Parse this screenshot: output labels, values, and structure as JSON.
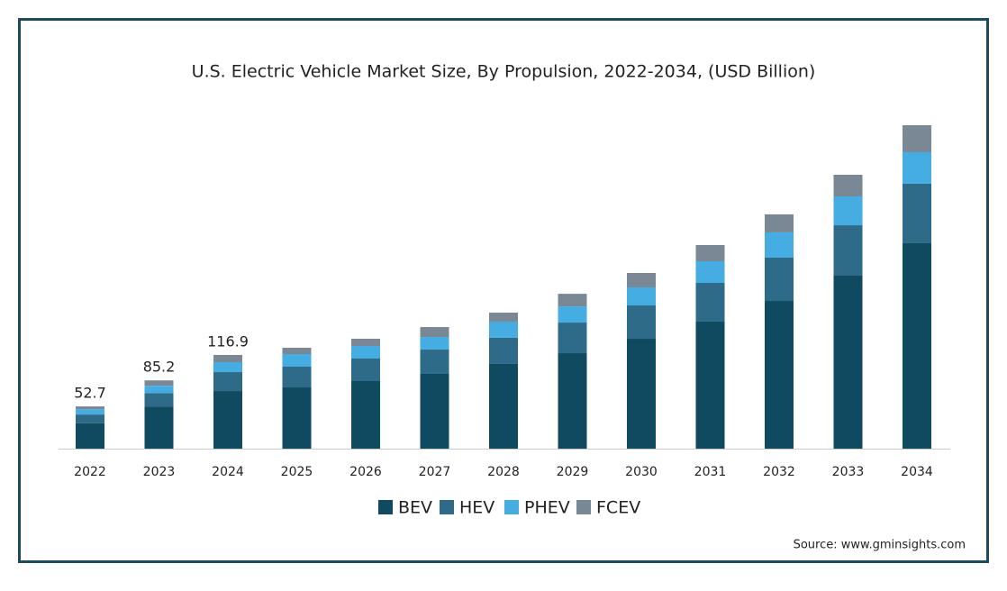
{
  "chart_data": {
    "type": "stacked_bar",
    "title": "U.S. Electric Vehicle Market Size, By Propulsion, 2022-2034, (USD Billion)",
    "categories": [
      "2022",
      "2023",
      "2024",
      "2025",
      "2026",
      "2027",
      "2028",
      "2029",
      "2030",
      "2031",
      "2032",
      "2033",
      "2034"
    ],
    "series": [
      {
        "name": "BEV",
        "color": "#0f4a60",
        "values": [
          31.8,
          52.3,
          71.9,
          76.4,
          84.3,
          93.3,
          105.7,
          119.1,
          137.1,
          158.5,
          184.3,
          215.8,
          256.3
        ]
      },
      {
        "name": "HEV",
        "color": "#2e6b88",
        "values": [
          10.8,
          16.9,
          23.6,
          25.9,
          28.1,
          30.3,
          32.6,
          38.2,
          41.6,
          48.3,
          54.0,
          62.9,
          74.2
        ]
      },
      {
        "name": "PHEV",
        "color": "#46ade2",
        "values": [
          6.5,
          9.3,
          12.4,
          15.7,
          15.7,
          15.7,
          20.2,
          20.2,
          22.5,
          27.0,
          31.5,
          36.0,
          39.3
        ]
      },
      {
        "name": "FCEV",
        "color": "#7a8896",
        "values": [
          3.6,
          6.7,
          9.0,
          7.9,
          9.0,
          12.4,
          11.2,
          15.7,
          18.0,
          20.2,
          22.5,
          27.0,
          33.7
        ]
      }
    ],
    "totals": [
      52.7,
      85.2,
      116.9
    ],
    "source": "Source: www.gminsights.com"
  }
}
